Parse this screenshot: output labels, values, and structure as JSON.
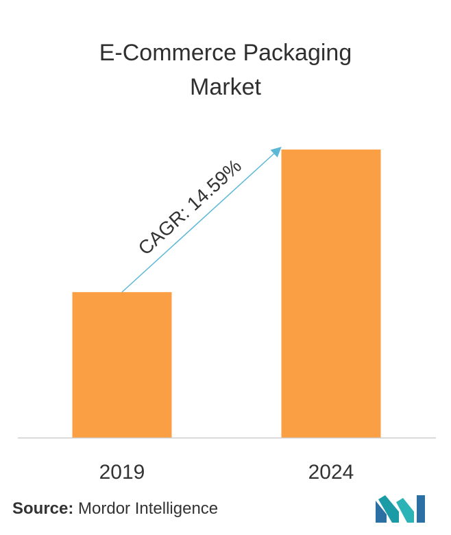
{
  "chart_data": {
    "type": "bar",
    "title_line1": "E-Commerce Packaging",
    "title_line2": "Market",
    "categories": [
      "2019",
      "2024"
    ],
    "values": [
      1.0,
      1.98
    ],
    "annotation": "CAGR: 14.59%",
    "bar_color": "#fb9f44",
    "arrow_color": "#5bb8d6",
    "xlabel": "",
    "ylabel": "",
    "grid": false
  },
  "source": {
    "label": "Source:",
    "text": " Mordor Intelligence"
  },
  "logo": {
    "icon": "mordor-intelligence-logo",
    "colors": [
      "#1a9ba5",
      "#2c6fa3"
    ]
  }
}
